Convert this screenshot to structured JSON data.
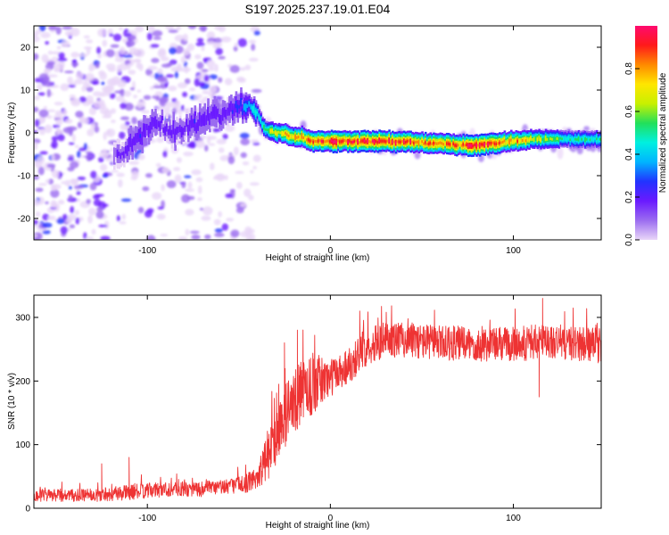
{
  "title": "S197.2025.237.19.01.E04",
  "chart_data": [
    {
      "type": "heatmap",
      "name": "spectrogram",
      "xlabel": "Height of straight line (km)",
      "ylabel": "Frequency (Hz)",
      "xlim": [
        -162,
        148
      ],
      "ylim": [
        -25,
        25
      ],
      "xticks": [
        -100,
        0,
        100
      ],
      "yticks": [
        -20,
        -10,
        0,
        10,
        20
      ],
      "xtick_labels": [
        "-100",
        "0",
        "100"
      ],
      "ytick_labels": [
        "-20",
        "-10",
        "0",
        "10",
        "20"
      ],
      "colorbar": {
        "label": "Normalized spectral amplitude",
        "range": [
          0,
          1
        ],
        "ticks": [
          0.0,
          0.2,
          0.4,
          0.6,
          0.8
        ],
        "tick_labels": [
          "0.0",
          "0.2",
          "0.4",
          "0.6",
          "0.8"
        ],
        "colors": [
          "#e9d6f8",
          "#9b6cf0",
          "#6a1aff",
          "#2233ff",
          "#00b4ff",
          "#00f0e0",
          "#22e05a",
          "#c8f000",
          "#ffe600",
          "#ff8a00",
          "#ff1a1a",
          "#ff0a6e"
        ]
      },
      "ridge": {
        "x": [
          -115,
          -105,
          -95,
          -85,
          -75,
          -65,
          -55,
          -48,
          -44,
          -40,
          -36,
          -30,
          -25,
          -20,
          -15,
          -10,
          0,
          10,
          20,
          40,
          60,
          80,
          90,
          100,
          110,
          120,
          130,
          148
        ],
        "freq": [
          -5,
          -1,
          2,
          0,
          2,
          4,
          5,
          6,
          7,
          5,
          1,
          0,
          0,
          -1,
          -1,
          -2,
          -2,
          -2,
          -2,
          -2,
          -2.5,
          -3,
          -2.5,
          -2,
          -1.5,
          -1.5,
          -1.5,
          -1.5
        ],
        "amplitude": [
          0.15,
          0.22,
          0.2,
          0.18,
          0.22,
          0.2,
          0.2,
          0.3,
          0.4,
          0.5,
          0.55,
          0.7,
          0.75,
          0.8,
          0.85,
          0.9,
          0.95,
          0.95,
          0.95,
          0.9,
          0.85,
          0.95,
          0.9,
          0.85,
          0.7,
          0.6,
          0.55,
          0.5
        ]
      },
      "noise_region_km": [
        -162,
        -48
      ]
    },
    {
      "type": "line",
      "name": "snr",
      "xlabel": "Height of straight line (km)",
      "ylabel": "SNR (10 * v/v)",
      "xlim": [
        -162,
        148
      ],
      "ylim": [
        0,
        335
      ],
      "xticks": [
        -100,
        0,
        100
      ],
      "yticks": [
        0,
        100,
        200,
        300
      ],
      "xtick_labels": [
        "-100",
        "0",
        "100"
      ],
      "ytick_labels": [
        "0",
        "100",
        "200",
        "300"
      ],
      "color": "#ee3333",
      "envelope": {
        "x": [
          -162,
          -130,
          -110,
          -90,
          -70,
          -55,
          -45,
          -40,
          -35,
          -30,
          -25,
          -20,
          -15,
          -10,
          -5,
          0,
          5,
          10,
          15,
          20,
          30,
          40,
          60,
          80,
          100,
          120,
          140,
          148
        ],
        "mean": [
          20,
          20,
          25,
          30,
          30,
          35,
          40,
          50,
          75,
          110,
          145,
          165,
          185,
          195,
          200,
          205,
          215,
          225,
          240,
          255,
          265,
          265,
          260,
          258,
          258,
          262,
          258,
          255
        ],
        "spread": [
          10,
          10,
          12,
          12,
          12,
          12,
          15,
          20,
          35,
          45,
          50,
          50,
          50,
          50,
          40,
          30,
          30,
          30,
          30,
          30,
          28,
          28,
          28,
          28,
          28,
          28,
          28,
          28
        ]
      },
      "spikes": [
        {
          "x": -125,
          "y": 70
        },
        {
          "x": -110,
          "y": 80
        },
        {
          "x": -25,
          "y": 260
        },
        {
          "x": -18,
          "y": 280
        },
        {
          "x": 16,
          "y": 310
        },
        {
          "x": 116,
          "y": 330
        },
        {
          "x": 114,
          "y": 175
        }
      ]
    }
  ]
}
